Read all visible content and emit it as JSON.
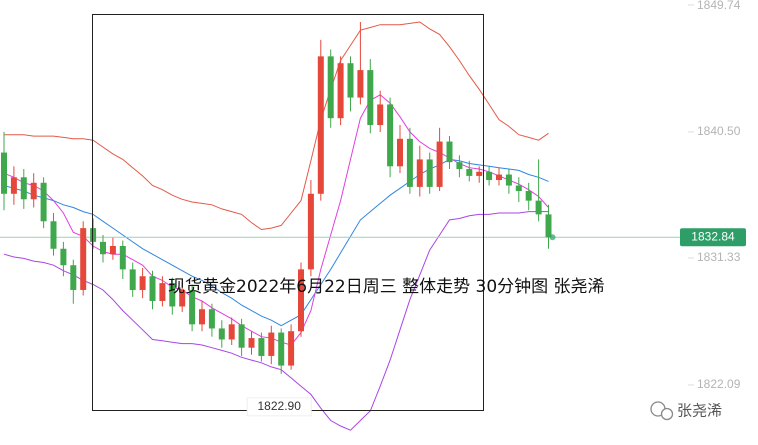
{
  "chart_data": {
    "type": "candlestick",
    "title": "现货黄金2022年6月22日周三 整体走势  30分钟图 张尧浠",
    "watermark": "张尧浠",
    "open": [
      1839.0,
      1836.0,
      1837.2,
      1835.6,
      1836.8,
      1834.0,
      1832.0,
      1830.8,
      1829.0,
      1833.5,
      1832.5,
      1831.6,
      1832.2,
      1830.5,
      1829.0,
      1830.0,
      1828.2,
      1829.5,
      1827.8,
      1829.0,
      1826.5,
      1827.6,
      1826.2,
      1825.4,
      1826.5,
      1824.8,
      1825.5,
      1824.2,
      1825.9,
      1823.5,
      1826.0,
      1830.5,
      1836.0,
      1846.0,
      1841.5,
      1845.5,
      1843.0,
      1845.0,
      1841.0,
      1842.5,
      1838.0,
      1840.0,
      1836.5,
      1838.5,
      1836.5,
      1839.8,
      1838.3,
      1837.8,
      1837.3,
      1837.6,
      1837.0,
      1837.4,
      1836.6,
      1836.2,
      1835.5,
      1834.5
    ],
    "high": [
      1840.5,
      1838.0,
      1837.8,
      1837.5,
      1837.2,
      1834.6,
      1832.5,
      1831.2,
      1834.0,
      1834.2,
      1833.0,
      1832.8,
      1832.6,
      1831.0,
      1830.6,
      1830.4,
      1830.0,
      1829.9,
      1829.6,
      1829.4,
      1828.2,
      1828.0,
      1826.8,
      1827.0,
      1826.9,
      1826.0,
      1825.9,
      1826.4,
      1826.2,
      1826.5,
      1831.0,
      1837.0,
      1847.2,
      1846.5,
      1846.0,
      1846.0,
      1848.5,
      1845.8,
      1843.5,
      1843.0,
      1841.0,
      1840.8,
      1839.5,
      1839.0,
      1840.8,
      1840.2,
      1838.8,
      1838.4,
      1838.0,
      1838.0,
      1837.9,
      1837.8,
      1837.2,
      1836.8,
      1838.5,
      1835.2
    ],
    "low": [
      1834.8,
      1835.2,
      1834.9,
      1835.0,
      1833.5,
      1831.5,
      1830.0,
      1828.0,
      1828.6,
      1832.0,
      1831.0,
      1831.2,
      1829.8,
      1828.5,
      1828.4,
      1827.6,
      1827.8,
      1827.2,
      1827.4,
      1826.0,
      1826.0,
      1825.6,
      1824.8,
      1825.0,
      1824.2,
      1824.3,
      1823.8,
      1823.6,
      1822.9,
      1823.2,
      1825.6,
      1830.0,
      1835.5,
      1840.8,
      1841.0,
      1842.0,
      1842.5,
      1840.4,
      1840.5,
      1837.2,
      1837.5,
      1836.0,
      1835.8,
      1836.0,
      1836.2,
      1837.8,
      1837.2,
      1836.9,
      1836.8,
      1836.6,
      1836.6,
      1836.0,
      1835.4,
      1834.8,
      1834.0,
      1832.0
    ],
    "close": [
      1836.0,
      1837.2,
      1835.6,
      1836.8,
      1834.0,
      1832.0,
      1830.8,
      1829.0,
      1833.5,
      1832.5,
      1831.6,
      1832.2,
      1830.5,
      1829.0,
      1830.0,
      1828.2,
      1829.5,
      1827.8,
      1829.0,
      1826.5,
      1827.6,
      1826.2,
      1825.4,
      1826.5,
      1824.8,
      1825.5,
      1824.2,
      1825.9,
      1823.5,
      1826.0,
      1830.5,
      1836.0,
      1846.0,
      1841.5,
      1845.5,
      1843.0,
      1845.0,
      1841.0,
      1842.5,
      1838.0,
      1840.0,
      1836.5,
      1838.5,
      1836.5,
      1839.8,
      1838.3,
      1837.8,
      1837.3,
      1837.6,
      1837.0,
      1837.4,
      1836.6,
      1836.2,
      1835.5,
      1834.5,
      1832.84
    ],
    "up_color": "#e5483b",
    "down_color": "#3fa84c",
    "series": [
      {
        "color": "#e25a48",
        "values": [
          1840.3,
          1840.3,
          1840.3,
          1840.2,
          1840.2,
          1840.2,
          1840.1,
          1840.0,
          1840.0,
          1839.9,
          1839.4,
          1838.9,
          1838.5,
          1837.9,
          1837.3,
          1836.6,
          1836.3,
          1835.9,
          1835.6,
          1835.4,
          1835.3,
          1835.2,
          1834.9,
          1834.7,
          1834.5,
          1833.9,
          1833.4,
          1833.5,
          1833.7,
          1834.6,
          1835.5,
          1838.4,
          1841.4,
          1843.6,
          1845.7,
          1846.8,
          1847.9,
          1848.1,
          1848.3,
          1848.3,
          1848.3,
          1848.4,
          1848.5,
          1848.0,
          1847.6,
          1846.7,
          1845.7,
          1844.6,
          1843.6,
          1842.5,
          1841.4,
          1840.9,
          1840.3,
          1840.1,
          1839.9,
          1840.4
        ]
      },
      {
        "color": "#a845e6",
        "values": [
          1831.6,
          1831.4,
          1831.3,
          1831.1,
          1831.0,
          1830.8,
          1830.4,
          1830.1,
          1829.7,
          1829.4,
          1829.0,
          1828.3,
          1827.5,
          1826.8,
          1826.1,
          1825.4,
          1825.3,
          1825.2,
          1825.1,
          1825.1,
          1825.0,
          1824.8,
          1824.6,
          1824.4,
          1824.1,
          1823.9,
          1823.7,
          1823.4,
          1823.2,
          1822.6,
          1822.0,
          1821.4,
          1820.4,
          1819.5,
          1819.1,
          1818.8,
          1819.5,
          1820.2,
          1822.0,
          1823.9,
          1826.1,
          1828.3,
          1830.1,
          1831.9,
          1833.0,
          1834.1,
          1834.2,
          1834.4,
          1834.5,
          1834.5,
          1834.6,
          1834.6,
          1834.6,
          1834.7,
          1834.7,
          1834.7
        ]
      },
      {
        "color": "#2f86e0",
        "values": [
          1836.6,
          1836.4,
          1836.2,
          1835.9,
          1835.7,
          1835.5,
          1835.2,
          1835.0,
          1834.7,
          1834.5,
          1834.0,
          1833.5,
          1833.0,
          1832.5,
          1832.0,
          1831.6,
          1831.2,
          1830.8,
          1830.4,
          1830.0,
          1829.7,
          1829.3,
          1828.8,
          1828.4,
          1827.9,
          1827.5,
          1827.1,
          1826.8,
          1826.4,
          1826.8,
          1827.2,
          1828.3,
          1829.4,
          1830.5,
          1831.7,
          1832.9,
          1834.1,
          1834.7,
          1835.3,
          1835.9,
          1836.4,
          1836.9,
          1837.4,
          1837.8,
          1838.1,
          1838.5,
          1838.4,
          1838.2,
          1838.1,
          1838.0,
          1837.9,
          1837.8,
          1837.7,
          1837.4,
          1837.2,
          1836.9
        ]
      },
      {
        "color": "#e03ee0",
        "values": [
          1837.5,
          1837.2,
          1836.8,
          1836.6,
          1836.2,
          1835.5,
          1834.6,
          1833.2,
          1832.9,
          1832.2,
          1831.8,
          1831.6,
          1831.6,
          1831.2,
          1830.8,
          1830.0,
          1829.7,
          1829.2,
          1829.0,
          1828.5,
          1828.2,
          1827.7,
          1827.3,
          1826.9,
          1826.4,
          1826.0,
          1825.6,
          1825.5,
          1825.2,
          1825.0,
          1825.9,
          1827.5,
          1830.5,
          1833.0,
          1835.5,
          1838.5,
          1841.5,
          1842.8,
          1843.2,
          1842.6,
          1841.6,
          1840.5,
          1839.8,
          1839.3,
          1839.0,
          1838.6,
          1838.2,
          1837.9,
          1837.8,
          1837.6,
          1837.3,
          1837.0,
          1836.7,
          1836.3,
          1835.8,
          1835.0
        ]
      }
    ],
    "ylim": [
      1817.72,
      1850.1
    ],
    "yticks": [
      1849.74,
      {
        "value": 1840.5,
        "label": "1840.50"
      },
      1831.33,
      1822.09
    ],
    "last_price": 1832.84,
    "last_price_color": "#2e9e68",
    "low_label": {
      "value": 1822.9,
      "label": "1822.90"
    }
  }
}
